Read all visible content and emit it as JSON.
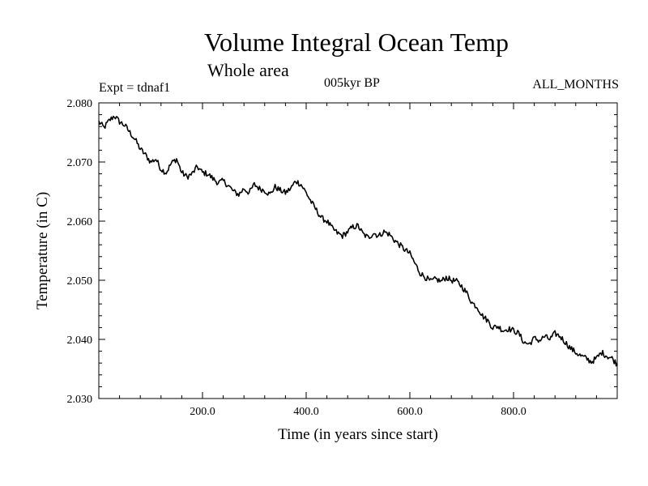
{
  "chart_data": {
    "type": "line",
    "title": "Volume Integral Ocean Temp",
    "subtitle": "Whole area",
    "experiment_label": "Expt = tdnaf1",
    "period_label": "005kyr BP",
    "months_label": "ALL_MONTHS",
    "xlabel": "Time (in years since start)",
    "ylabel": "Temperature (in C)",
    "xlim": [
      0,
      1000
    ],
    "ylim": [
      2.03,
      2.08
    ],
    "xticks": [
      200,
      400,
      600,
      800
    ],
    "xtick_labels": [
      "200.0",
      "400.0",
      "600.0",
      "800.0"
    ],
    "yticks": [
      2.03,
      2.04,
      2.05,
      2.06,
      2.07,
      2.08
    ],
    "ytick_labels": [
      "2.030",
      "2.040",
      "2.050",
      "2.060",
      "2.070",
      "2.080"
    ],
    "grid": false,
    "series": [
      {
        "name": "Volume integral ocean temperature",
        "x": [
          0,
          10,
          20,
          30,
          40,
          50,
          60,
          70,
          80,
          90,
          100,
          110,
          120,
          130,
          140,
          150,
          160,
          170,
          180,
          190,
          200,
          210,
          220,
          230,
          240,
          250,
          260,
          270,
          280,
          290,
          300,
          310,
          320,
          330,
          340,
          350,
          360,
          370,
          380,
          390,
          400,
          410,
          420,
          430,
          440,
          450,
          460,
          470,
          480,
          490,
          500,
          510,
          520,
          530,
          540,
          550,
          560,
          570,
          580,
          590,
          600,
          610,
          620,
          630,
          640,
          650,
          660,
          670,
          680,
          690,
          700,
          710,
          720,
          730,
          740,
          750,
          760,
          770,
          780,
          790,
          800,
          810,
          820,
          830,
          840,
          850,
          860,
          870,
          880,
          890,
          900,
          910,
          920,
          930,
          940,
          950,
          960,
          970,
          980,
          990,
          1000
        ],
        "values": [
          2.0768,
          2.0758,
          2.077,
          2.0778,
          2.0768,
          2.0762,
          2.075,
          2.0738,
          2.0722,
          2.0712,
          2.07,
          2.0705,
          2.0688,
          2.0682,
          2.0698,
          2.0705,
          2.0682,
          2.0675,
          2.068,
          2.0692,
          2.0682,
          2.068,
          2.0672,
          2.0665,
          2.0668,
          2.066,
          2.065,
          2.0645,
          2.0655,
          2.0648,
          2.0662,
          2.0655,
          2.0652,
          2.0645,
          2.0658,
          2.0652,
          2.0648,
          2.0655,
          2.0668,
          2.0662,
          2.0648,
          2.0632,
          2.0618,
          2.0605,
          2.06,
          2.0588,
          2.058,
          2.0575,
          2.0582,
          2.059,
          2.0592,
          2.0578,
          2.0572,
          2.058,
          2.0575,
          2.0582,
          2.0578,
          2.0568,
          2.056,
          2.0552,
          2.0545,
          2.0528,
          2.0512,
          2.0505,
          2.0498,
          2.0502,
          2.0498,
          2.0505,
          2.05,
          2.0498,
          2.049,
          2.0478,
          2.0462,
          2.0455,
          2.044,
          2.0432,
          2.042,
          2.0422,
          2.0415,
          2.0418,
          2.0415,
          2.041,
          2.0395,
          2.0392,
          2.0402,
          2.0398,
          2.0405,
          2.04,
          2.041,
          2.0405,
          2.0395,
          2.0385,
          2.0378,
          2.0372,
          2.0368,
          2.0362,
          2.0368,
          2.0378,
          2.0372,
          2.0368,
          2.0358
        ]
      }
    ]
  }
}
